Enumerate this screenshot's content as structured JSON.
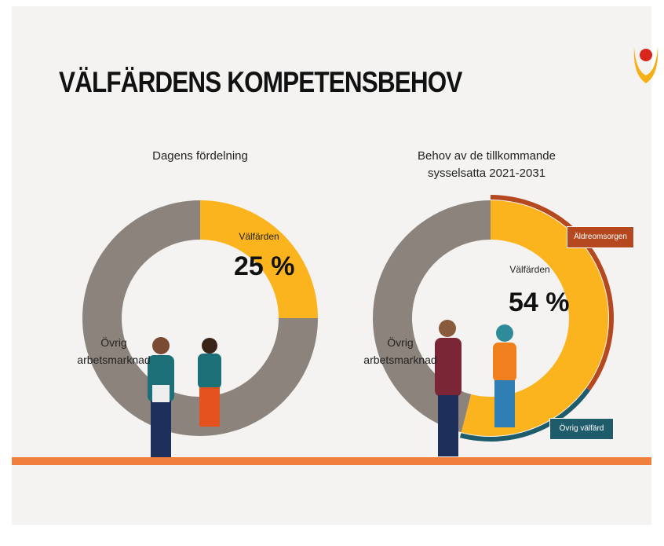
{
  "title": "VÄLFÄRDENS KOMPETENSBEHOV",
  "chart_data": [
    {
      "type": "donut",
      "title": "Dagens fördelning",
      "categories": [
        "Välfärden",
        "Övrig arbetsmarknad"
      ],
      "values": [
        25,
        75
      ],
      "value_labels": [
        "25 %",
        null
      ],
      "colors": [
        "#fbb41e",
        "#8c847c"
      ]
    },
    {
      "type": "donut",
      "title": "Behov av de tillkommande sysselsatta 2021-2031",
      "categories": [
        "Välfärden",
        "Övrig arbetsmarknad"
      ],
      "values": [
        54,
        46
      ],
      "value_labels": [
        "54 %",
        null
      ],
      "colors": [
        "#fbb41e",
        "#8c847c"
      ],
      "outer_ring": {
        "categories": [
          "Äldreomsorgen",
          "Övrig välfärd"
        ],
        "values": [
          35,
          19
        ],
        "colors": [
          "#b5481e",
          "#1f5c6b"
        ]
      }
    }
  ]
}
